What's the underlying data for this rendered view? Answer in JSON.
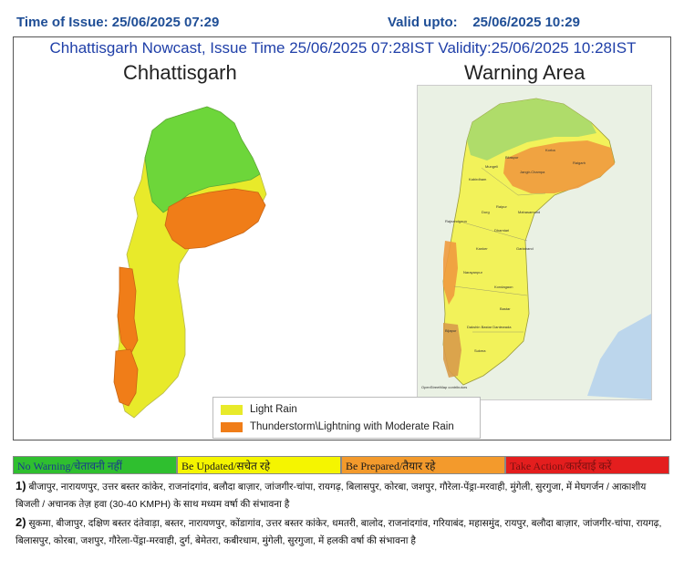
{
  "header": {
    "time_of_issue": "Time of Issue: 25/06/2025 07:29",
    "valid_upto": "Valid upto:    25/06/2025 10:29"
  },
  "panel": {
    "headline": "Chhattisgarh Nowcast, Issue Time 25/06/2025 07:28IST  Validity:25/06/2025 10:28IST",
    "left_title": "Chhattisgarh",
    "right_title": "Warning Area"
  },
  "legend": {
    "items": [
      {
        "label": "Light Rain",
        "color": "#e8ea2a"
      },
      {
        "label": "Thunderstorm\\Lightning with Moderate Rain",
        "color": "#f07d18"
      }
    ]
  },
  "scale": [
    {
      "label": "No Warning/चेतावनी नहीं",
      "color": "#2fbf2f",
      "text_color": "#1a3a8a"
    },
    {
      "label": "Be Updated/सचेत रहे",
      "color": "#f5f500",
      "text_color": "#1a1a1a"
    },
    {
      "label": "Be Prepared/तैयार रहे",
      "color": "#f39a2c",
      "text_color": "#1a1a1a"
    },
    {
      "label": "Take Action/कार्रवाई करें",
      "color": "#e41e1e",
      "text_color": "#7a1010"
    }
  ],
  "notes": [
    {
      "num": "1)",
      "text": "बीजापुर, नारायणपुर, उत्तर बस्तर कांकेर, राजनांदगांव, बलौदा बाज़ार, जांजगीर-चांपा, रायगढ़, बिलासपुर, कोरबा, जशपुर, गौरेला-पेंड्रा-मरवाही, मुंगेली, सुरगुजा,  में मेघगर्जन / आकाशीय बिजली / अचानक तेज़ हवा (30-40 KMPH) के साथ मध्यम वर्षा की संभावना  है"
    },
    {
      "num": "2)",
      "text": "सुकमा, बीजापुर, दक्षिण बस्तर दंतेवाड़ा, बस्तर, नारायणपुर, कोंडागांव, उत्तर बस्तर कांकेर, धमतरी, बालोद, राजनांदगांव, गरियाबंद, महासमुंद, रायपुर, बलौदा बाज़ार, जांजगीर-चांपा, रायगढ़, बिलासपुर, कोरबा, जशपुर, गौरेला-पेंड्रा-मरवाही, दुर्ग, बेमेतरा, कबीरधाम, मुंगेली, सुरगुजा,  में हलकी वर्षा की संभावना  है"
    }
  ],
  "map_labels": [
    "Jangir-Champa",
    "Raigarh",
    "Korba",
    "Bilaspur",
    "Mungeli",
    "Kabirdham",
    "Rajnandgaon",
    "Durg",
    "Raipur",
    "Mahasamund",
    "Dhamtari",
    "Gariaband",
    "Kanker",
    "Kondagaon",
    "Narayanpur",
    "Bastar",
    "Dakshin Bastar Dantewada",
    "Bijapur",
    "Sukma"
  ],
  "attribution": "OpenStreetMap contributors"
}
